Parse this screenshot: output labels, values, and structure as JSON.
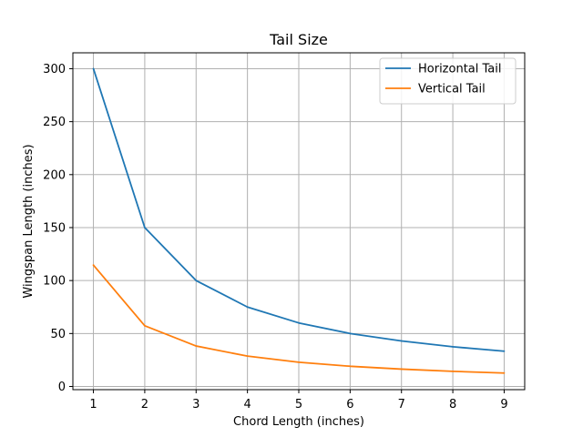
{
  "chart_data": {
    "type": "line",
    "title": "Tail Size",
    "xlabel": "Chord Length (inches)",
    "ylabel": "Wingspan Length (inches)",
    "x": [
      1,
      2,
      3,
      4,
      5,
      6,
      7,
      8,
      9
    ],
    "xlim": [
      0.6,
      9.4
    ],
    "ylim": [
      -3,
      315
    ],
    "xticks": [
      1,
      2,
      3,
      4,
      5,
      6,
      7,
      8,
      9
    ],
    "yticks": [
      0,
      50,
      100,
      150,
      200,
      250,
      300
    ],
    "grid": true,
    "legend_position": "upper right",
    "series": [
      {
        "name": "Horizontal Tail",
        "color": "#1f77b4",
        "values": [
          300,
          150,
          100,
          75,
          60,
          50,
          43,
          37.5,
          33.3
        ]
      },
      {
        "name": "Vertical Tail",
        "color": "#ff7f0e",
        "values": [
          114.6,
          57.3,
          38.2,
          28.7,
          22.9,
          19.1,
          16.4,
          14.3,
          12.7
        ]
      }
    ]
  }
}
